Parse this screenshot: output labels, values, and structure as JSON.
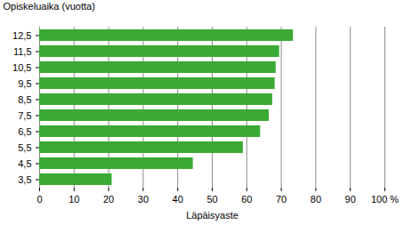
{
  "chart_data": {
    "type": "bar",
    "orientation": "horizontal",
    "y_label": "Opiskeluaika (vuotta)",
    "x_label": "Läpäisyaste",
    "categories": [
      "12,5",
      "11,5",
      "10,5",
      "9,5",
      "8,5",
      "7,5",
      "6,5",
      "5,5",
      "4,5",
      "3,5"
    ],
    "values": [
      73.5,
      69.5,
      68.5,
      68.2,
      67.5,
      66.5,
      64,
      59,
      44.5,
      21
    ],
    "color": "#3aaa35",
    "xlim": [
      0,
      100
    ],
    "xticks": [
      0,
      10,
      20,
      30,
      40,
      50,
      60,
      70,
      80,
      90,
      {
        "value": 100,
        "label": "100 %"
      }
    ],
    "grid": true
  }
}
